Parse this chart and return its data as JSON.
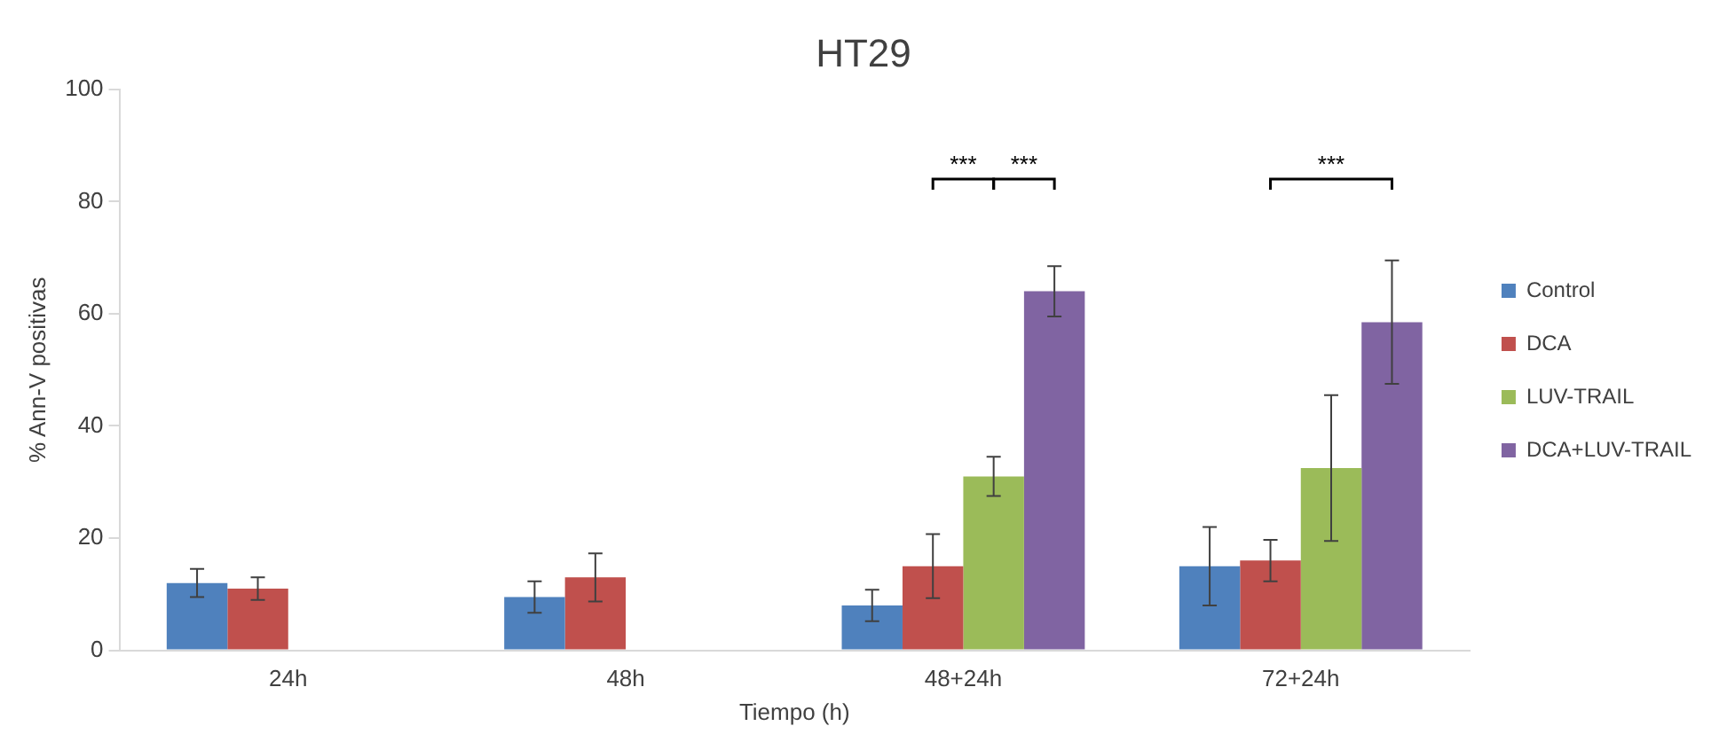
{
  "chart_data": {
    "type": "bar",
    "title": "HT29",
    "xlabel": "Tiempo (h)",
    "ylabel": "% Ann-V positivas",
    "categories": [
      "24h",
      "48h",
      "48+24h",
      "72+24h"
    ],
    "series": [
      {
        "name": "Control",
        "color": "#4f81bd",
        "values": [
          12,
          9.5,
          8,
          15
        ],
        "errors": [
          2.5,
          2.8,
          2.8,
          7
        ]
      },
      {
        "name": "DCA",
        "color": "#c0504d",
        "values": [
          11,
          13,
          15,
          16
        ],
        "errors": [
          2,
          4.3,
          5.7,
          3.7
        ]
      },
      {
        "name": "LUV-TRAIL",
        "color": "#9bbb59",
        "values": [
          null,
          null,
          31,
          32.5
        ],
        "errors": [
          null,
          null,
          3.5,
          13
        ]
      },
      {
        "name": "DCA+LUV-TRAIL",
        "color": "#8064a2",
        "values": [
          null,
          null,
          64,
          58.5
        ],
        "errors": [
          null,
          null,
          4.5,
          11
        ]
      }
    ],
    "ylim": [
      0,
      100
    ],
    "yticks": [
      0,
      20,
      40,
      60,
      80,
      100
    ],
    "grid": false,
    "legend": "right",
    "annotations": [
      "***",
      "***",
      "***"
    ]
  }
}
